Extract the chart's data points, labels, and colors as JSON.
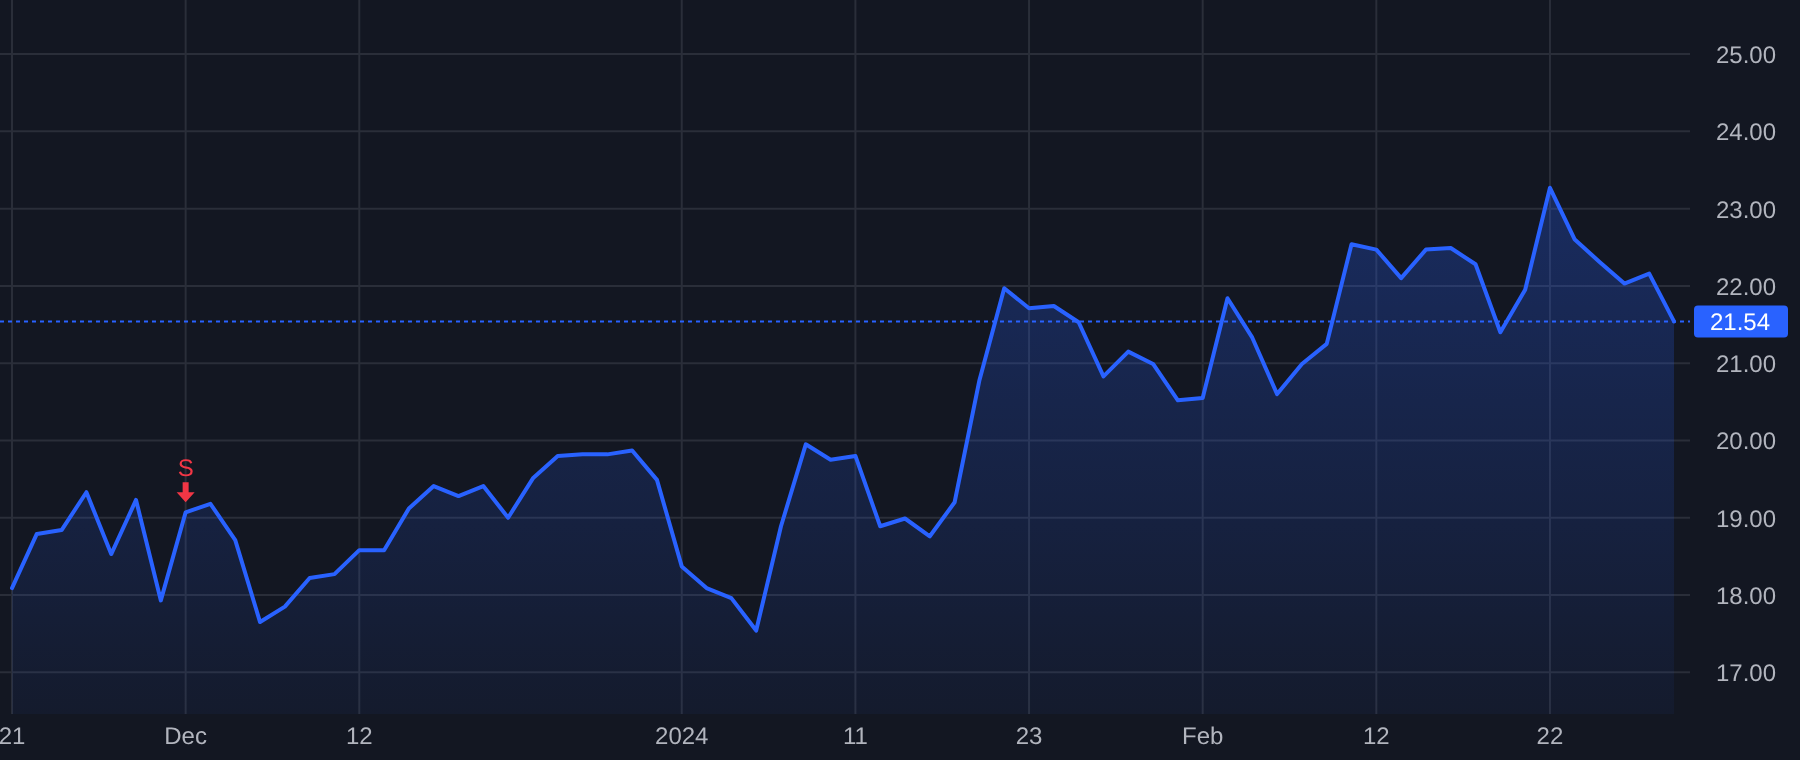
{
  "chart_data": {
    "type": "area",
    "categories": [
      "21",
      null,
      null,
      null,
      null,
      null,
      null,
      "Dec",
      null,
      null,
      null,
      null,
      null,
      null,
      "12",
      null,
      null,
      null,
      null,
      null,
      null,
      null,
      null,
      null,
      null,
      null,
      null,
      "2024",
      null,
      null,
      null,
      null,
      null,
      null,
      "11",
      null,
      null,
      null,
      null,
      null,
      null,
      "23",
      null,
      null,
      null,
      null,
      null,
      null,
      "Feb",
      null,
      null,
      null,
      null,
      null,
      null,
      "12",
      null,
      null,
      null,
      null,
      null,
      null,
      "22",
      null,
      null,
      null,
      null,
      null
    ],
    "series": [
      {
        "color": "#2962ff",
        "values": [
          18.09,
          18.79,
          18.84,
          19.33,
          18.53,
          19.23,
          17.93,
          19.07,
          19.18,
          18.71,
          17.65,
          17.85,
          18.22,
          18.27,
          18.58,
          18.58,
          19.12,
          19.41,
          19.28,
          19.41,
          19.0,
          19.51,
          19.8,
          19.82,
          19.82,
          19.87,
          19.49,
          18.37,
          18.09,
          17.96,
          17.54,
          18.89,
          19.95,
          19.75,
          19.8,
          18.89,
          18.99,
          18.76,
          19.2,
          20.78,
          21.97,
          21.71,
          21.74,
          21.53,
          20.83,
          21.15,
          20.99,
          20.52,
          20.55,
          21.84,
          21.33,
          20.6,
          20.99,
          21.25,
          22.54,
          22.47,
          22.1,
          22.47,
          22.49,
          22.28,
          21.4,
          21.95,
          23.27,
          22.6,
          22.31,
          22.03,
          22.16,
          21.54
        ]
      }
    ],
    "ylim": [
      16.46,
      25.7
    ],
    "yticks": [
      {
        "value": 17,
        "label": "17.00"
      },
      {
        "value": 18,
        "label": "18.00"
      },
      {
        "value": 19,
        "label": "19.00"
      },
      {
        "value": 20,
        "label": "20.00"
      },
      {
        "value": 21,
        "label": "21.00"
      },
      {
        "value": 22,
        "label": "22.00"
      },
      {
        "value": 23,
        "label": "23.00"
      },
      {
        "value": 24,
        "label": "24.00"
      },
      {
        "value": 25,
        "label": "25.00"
      }
    ],
    "grid": true,
    "ref_lines": [
      {
        "axis": "y",
        "value": 21.54,
        "label": "21.54",
        "color": "#2962ff",
        "line_style": "dotted"
      }
    ],
    "annotations": [
      {
        "text": "S",
        "x": "Dec",
        "y": 19.07
      }
    ]
  }
}
